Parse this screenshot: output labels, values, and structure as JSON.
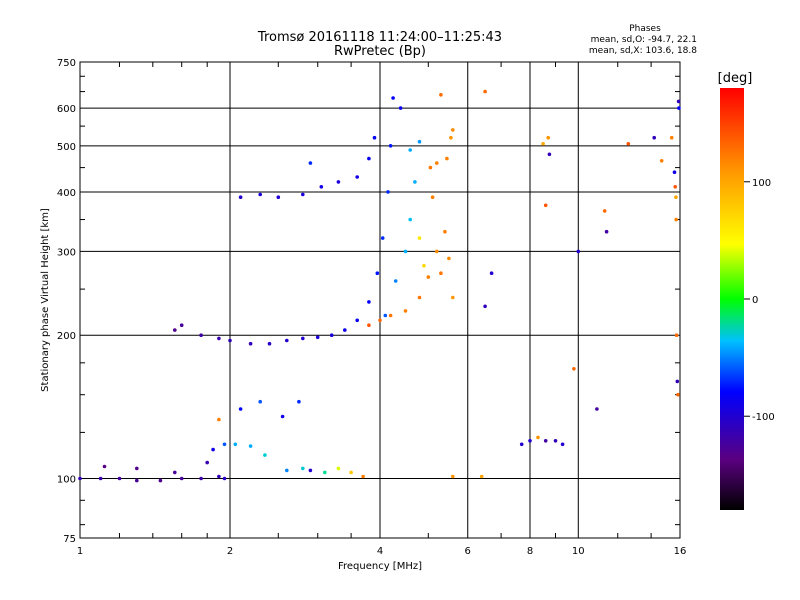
{
  "chart_data": {
    "type": "scatter",
    "title_line1": "Tromsø 20161118 11:24:00–11:25:43",
    "title_line2": "RwPretec (Bp)",
    "phases": {
      "title": "Phases",
      "line_o": "mean, sd,O: -94.7, 22.1",
      "line_x": "mean, sd,X: 103.6, 18.8"
    },
    "xlabel": "Frequency [MHz]",
    "ylabel": "Stationary phase Virtual Height [km]",
    "x_scale": "log",
    "y_scale": "log",
    "xlim": [
      1,
      16
    ],
    "ylim": [
      75,
      750
    ],
    "x_ticks": [
      1,
      2,
      4,
      6,
      8,
      10,
      16
    ],
    "x_tick_labels": [
      "1",
      "2",
      "4",
      "6",
      "8",
      "10",
      "16"
    ],
    "y_ticks": [
      75,
      100,
      200,
      300,
      400,
      500,
      600,
      750
    ],
    "y_tick_labels": [
      "75",
      "100",
      "200",
      "300",
      "400",
      "500",
      "600",
      "750"
    ],
    "grid": true,
    "colorbar": {
      "label": "[deg]",
      "range": [
        -180,
        180
      ],
      "ticks": [
        100,
        0,
        -100
      ],
      "tick_labels": [
        "100",
        "0",
        "-100"
      ]
    },
    "series": [
      {
        "values": [
          [
            1.0,
            100,
            -110
          ],
          [
            1.1,
            100,
            -115
          ],
          [
            1.2,
            100,
            -120
          ],
          [
            1.3,
            99,
            -125
          ],
          [
            1.45,
            99,
            -130
          ],
          [
            1.6,
            100,
            -125
          ],
          [
            1.75,
            100,
            -118
          ],
          [
            1.9,
            101,
            -110
          ],
          [
            1.12,
            106,
            -135
          ],
          [
            1.3,
            105,
            -130
          ],
          [
            1.55,
            103,
            -125
          ],
          [
            1.8,
            108,
            -115
          ],
          [
            1.95,
            100,
            -105
          ]
        ]
      },
      {
        "values": [
          [
            1.85,
            115,
            -90
          ],
          [
            1.95,
            118,
            -60
          ],
          [
            2.05,
            118,
            -40
          ],
          [
            2.2,
            117,
            -40
          ],
          [
            2.35,
            112,
            -30
          ],
          [
            2.6,
            104,
            -50
          ],
          [
            2.8,
            105,
            -30
          ],
          [
            2.9,
            104,
            -100
          ],
          [
            3.1,
            103,
            -20
          ],
          [
            3.3,
            105,
            40
          ],
          [
            3.5,
            103,
            80
          ],
          [
            3.7,
            101,
            120
          ],
          [
            1.9,
            133,
            120
          ],
          [
            2.1,
            140,
            -80
          ],
          [
            2.3,
            145,
            -60
          ],
          [
            2.55,
            135,
            -90
          ],
          [
            2.75,
            145,
            -70
          ]
        ]
      },
      {
        "values": [
          [
            1.55,
            205,
            -130
          ],
          [
            1.6,
            210,
            -125
          ],
          [
            1.75,
            200,
            -120
          ],
          [
            1.9,
            197,
            -115
          ],
          [
            2.0,
            195,
            -110
          ],
          [
            2.2,
            192,
            -110
          ],
          [
            2.4,
            192,
            -105
          ],
          [
            2.6,
            195,
            -100
          ],
          [
            2.8,
            197,
            -100
          ],
          [
            3.0,
            198,
            -95
          ],
          [
            3.2,
            200,
            -95
          ],
          [
            3.4,
            205,
            -90
          ],
          [
            3.6,
            215,
            -85
          ],
          [
            3.8,
            235,
            -80
          ],
          [
            3.95,
            270,
            -75
          ],
          [
            4.05,
            320,
            -70
          ],
          [
            4.15,
            400,
            -70
          ],
          [
            4.2,
            500,
            -75
          ],
          [
            4.25,
            630,
            -80
          ],
          [
            4.4,
            600,
            -85
          ]
        ]
      },
      {
        "values": [
          [
            2.1,
            390,
            -100
          ],
          [
            2.3,
            395,
            -95
          ],
          [
            2.5,
            390,
            -100
          ],
          [
            2.8,
            395,
            -95
          ],
          [
            3.05,
            410,
            -90
          ],
          [
            3.3,
            420,
            -95
          ],
          [
            3.6,
            430,
            -90
          ],
          [
            3.8,
            470,
            -85
          ],
          [
            3.9,
            520,
            -80
          ],
          [
            2.9,
            460,
            -70
          ]
        ]
      },
      {
        "values": [
          [
            4.1,
            220,
            -60
          ],
          [
            4.3,
            260,
            -50
          ],
          [
            4.5,
            300,
            -40
          ],
          [
            4.6,
            350,
            -35
          ],
          [
            4.7,
            420,
            -40
          ],
          [
            4.6,
            490,
            -40
          ],
          [
            4.8,
            510,
            -45
          ]
        ]
      },
      {
        "values": [
          [
            3.8,
            210,
            140
          ],
          [
            4.0,
            215,
            130
          ],
          [
            4.2,
            220,
            125
          ],
          [
            4.5,
            225,
            120
          ],
          [
            4.8,
            240,
            125
          ],
          [
            5.0,
            265,
            120
          ],
          [
            5.2,
            300,
            115
          ],
          [
            5.4,
            330,
            120
          ],
          [
            5.5,
            290,
            115
          ],
          [
            5.6,
            240,
            110
          ],
          [
            5.3,
            270,
            125
          ],
          [
            5.1,
            390,
            120
          ],
          [
            5.05,
            450,
            125
          ],
          [
            5.2,
            460,
            120
          ],
          [
            5.45,
            470,
            120
          ],
          [
            5.6,
            540,
            115
          ],
          [
            5.3,
            640,
            130
          ],
          [
            5.55,
            520,
            110
          ],
          [
            4.8,
            320,
            60
          ],
          [
            4.9,
            280,
            70
          ]
        ]
      },
      {
        "values": [
          [
            5.6,
            101,
            110
          ],
          [
            6.4,
            101,
            100
          ],
          [
            6.5,
            650,
            130
          ],
          [
            6.5,
            230,
            -110
          ],
          [
            6.7,
            270,
            -100
          ],
          [
            7.7,
            118,
            -100
          ],
          [
            8.0,
            120,
            -100
          ],
          [
            8.3,
            122,
            110
          ],
          [
            8.6,
            120,
            -120
          ],
          [
            9.0,
            120,
            -110
          ],
          [
            9.3,
            118,
            -100
          ],
          [
            8.5,
            505,
            100
          ],
          [
            8.7,
            520,
            110
          ],
          [
            8.75,
            480,
            -110
          ],
          [
            8.6,
            375,
            140
          ],
          [
            9.8,
            170,
            130
          ],
          [
            10.0,
            300,
            -100
          ],
          [
            10.9,
            140,
            -120
          ],
          [
            11.3,
            365,
            130
          ],
          [
            11.4,
            330,
            -120
          ],
          [
            12.6,
            505,
            140
          ],
          [
            14.2,
            520,
            -110
          ],
          [
            14.7,
            465,
            120
          ],
          [
            15.4,
            520,
            120
          ],
          [
            15.6,
            440,
            -90
          ],
          [
            15.65,
            410,
            140
          ],
          [
            15.7,
            390,
            100
          ],
          [
            15.72,
            350,
            120
          ],
          [
            15.75,
            200,
            130
          ],
          [
            15.8,
            160,
            -110
          ],
          [
            15.85,
            150,
            130
          ],
          [
            15.9,
            620,
            -110
          ],
          [
            15.92,
            600,
            -80
          ]
        ]
      }
    ]
  }
}
